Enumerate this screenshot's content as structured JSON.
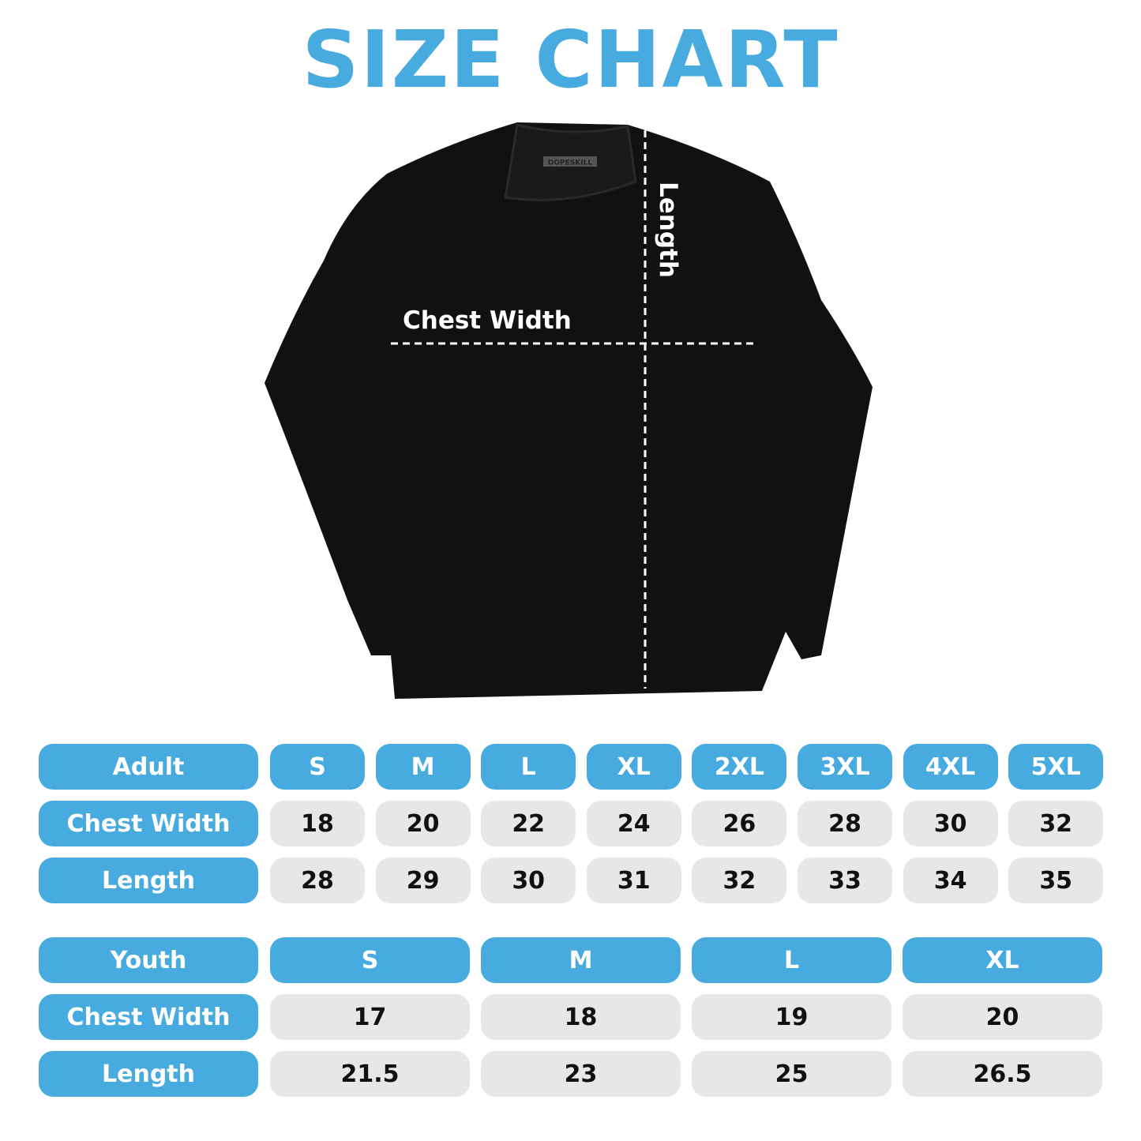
{
  "title": "SIZE CHART",
  "brand_tag": "DOPESKILL",
  "diagram": {
    "chest_label": "Chest Width",
    "length_label": "Length"
  },
  "colors": {
    "accent": "#48abe0",
    "cell_grey": "#e6e7e8",
    "shirt": "#111111"
  },
  "adult": {
    "header": "Adult",
    "sizes": [
      "S",
      "M",
      "L",
      "XL",
      "2XL",
      "3XL",
      "4XL",
      "5XL"
    ],
    "rows": [
      {
        "label": "Chest Width",
        "values": [
          "18",
          "20",
          "22",
          "24",
          "26",
          "28",
          "30",
          "32"
        ]
      },
      {
        "label": "Length",
        "values": [
          "28",
          "29",
          "30",
          "31",
          "32",
          "33",
          "34",
          "35"
        ]
      }
    ]
  },
  "youth": {
    "header": "Youth",
    "sizes": [
      "S",
      "M",
      "L",
      "XL"
    ],
    "rows": [
      {
        "label": "Chest Width",
        "values": [
          "17",
          "18",
          "19",
          "20"
        ]
      },
      {
        "label": "Length",
        "values": [
          "21.5",
          "23",
          "25",
          "26.5"
        ]
      }
    ]
  }
}
